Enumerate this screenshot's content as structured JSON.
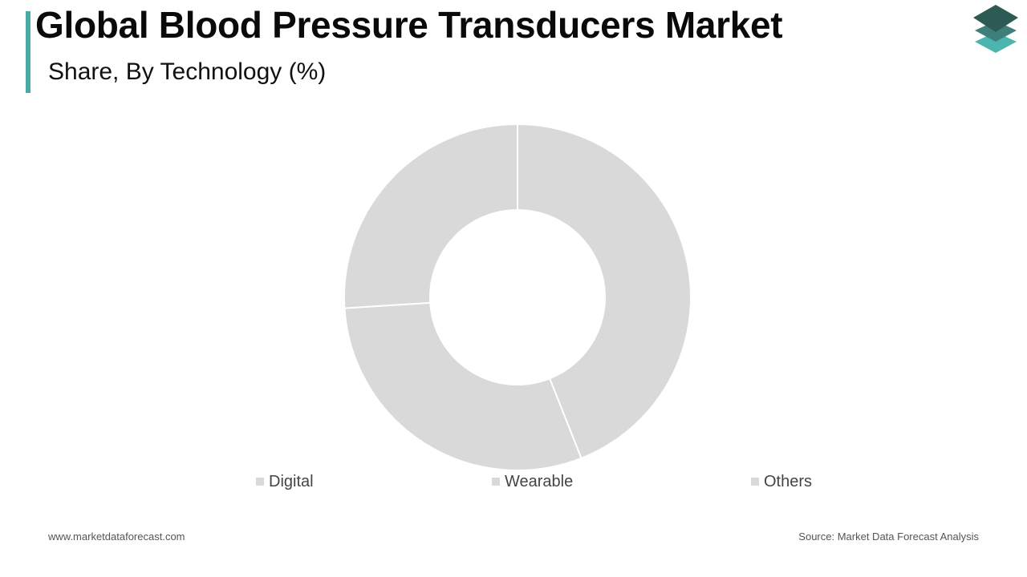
{
  "header": {
    "title": "Global Blood Pressure Transducers Market",
    "subtitle": "Share, By Technology (%)"
  },
  "colors": {
    "accent": "#4aaba5",
    "slice": "#d9d9d9",
    "logo_dark": "#2e5a56",
    "logo_mid": "#3f7f7a",
    "logo_light": "#4cb5ad"
  },
  "chart_data": {
    "type": "pie",
    "title": "Share, By Technology (%)",
    "series": [
      {
        "name": "Digital",
        "value": 44.0
      },
      {
        "name": "Wearable",
        "value": 30.0
      },
      {
        "name": "Others",
        "value": 26.0
      }
    ],
    "legend": "bottom"
  },
  "footer": {
    "website": "www.marketdataforecast.com",
    "source": "Source: Market Data Forecast Analysis"
  }
}
